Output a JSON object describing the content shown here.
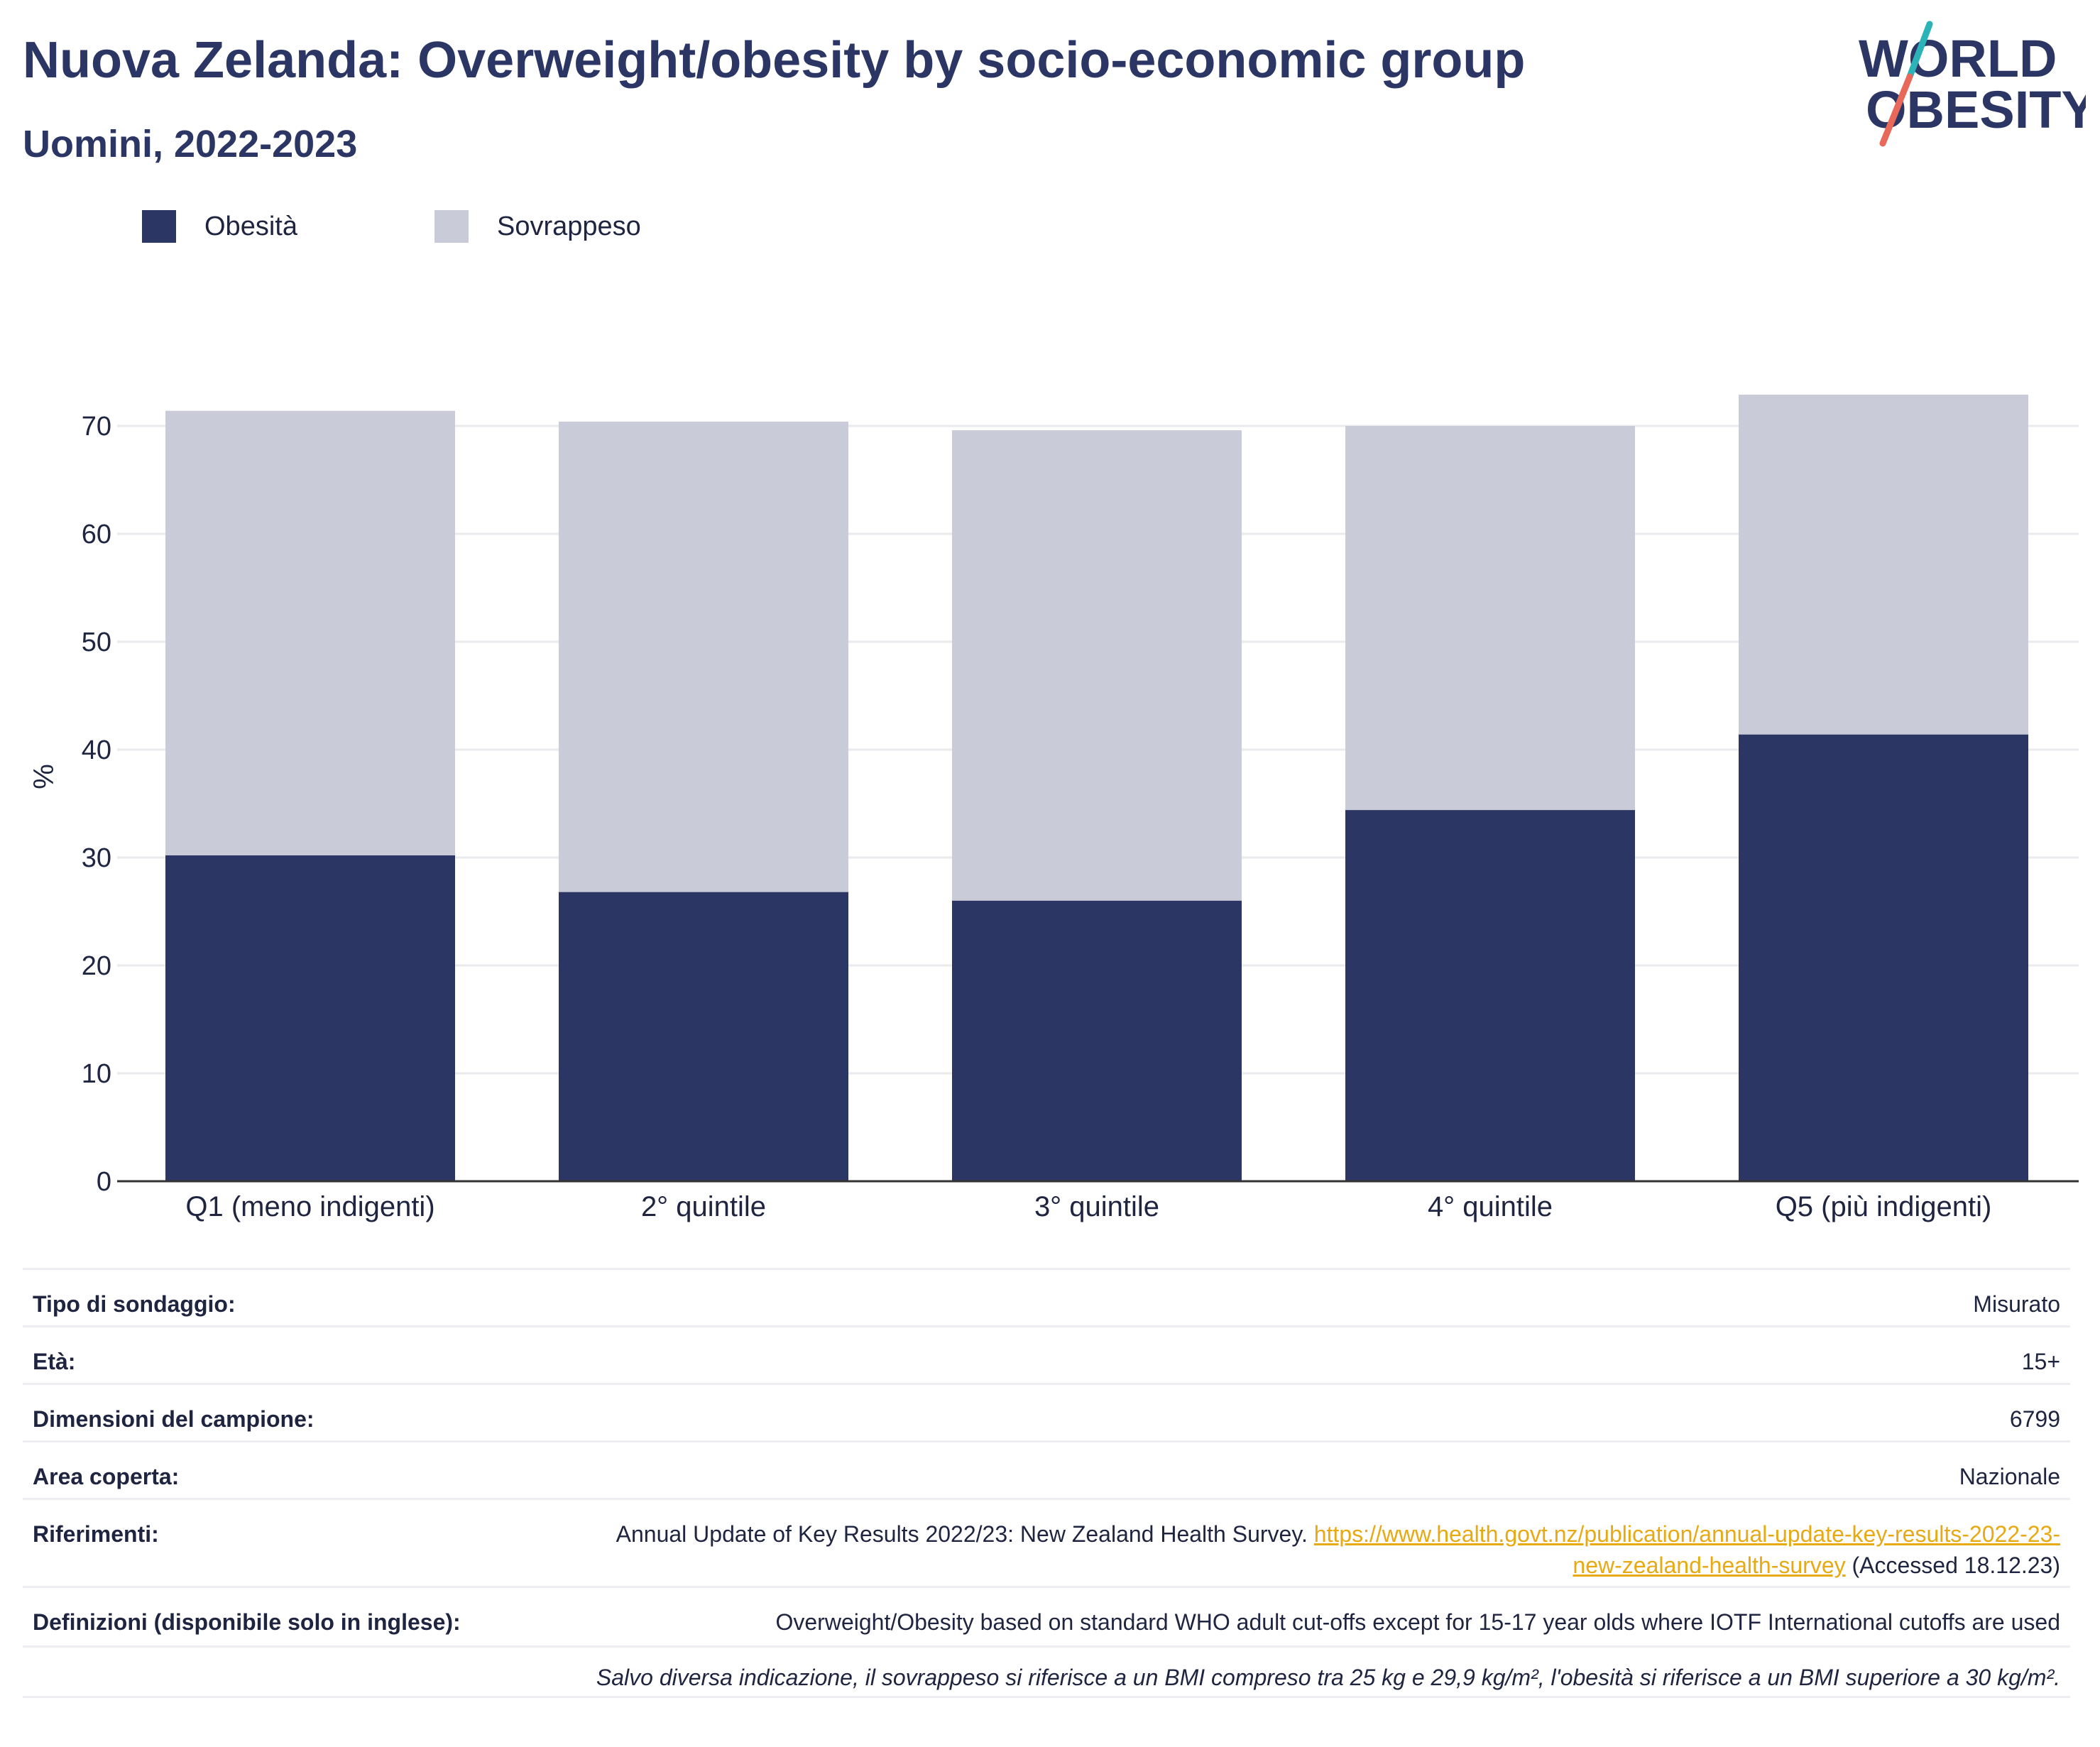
{
  "header": {
    "title": "Nuova Zelanda: Overweight/obesity by socio-economic group",
    "subtitle": "Uomini, 2022-2023"
  },
  "logo": {
    "line1": "WORLD",
    "line2": "OBESITY",
    "colors": {
      "text": "#2b3664",
      "slash_teal": "#2bb3b8",
      "slash_coral": "#e8695a"
    }
  },
  "colors": {
    "obesity": "#2b3664",
    "overweight": "#cacbd8",
    "grid": "#e9eaee",
    "axis": "#333333",
    "link": "#e8a912"
  },
  "chart_data": {
    "type": "bar",
    "stacked": true,
    "categories": [
      "Q1 (meno indigenti)",
      "2° quintile",
      "3° quintile",
      "4° quintile",
      "Q5 (più indigenti)"
    ],
    "series": [
      {
        "name": "Obesità",
        "values": [
          30.2,
          26.8,
          26.0,
          34.4,
          41.4
        ]
      },
      {
        "name": "Sovrappeso",
        "values": [
          41.2,
          43.6,
          43.6,
          35.6,
          31.5
        ]
      }
    ],
    "totals": [
      71.4,
      70.4,
      69.6,
      70.0,
      72.9
    ],
    "ylabel": "%",
    "xlabel": "",
    "ylim": [
      0,
      75
    ],
    "yticks": [
      0,
      10,
      20,
      30,
      40,
      50,
      60,
      70
    ],
    "grid": true,
    "legend": "top-left"
  },
  "info": {
    "survey_type_label": "Tipo di sondaggio:",
    "survey_type_value": "Misurato",
    "age_label": "Età:",
    "age_value": "15+",
    "sample_label": "Dimensioni del campione:",
    "sample_value": "6799",
    "area_label": "Area coperta:",
    "area_value": "Nazionale",
    "references_label": "Riferimenti:",
    "references_text": "Annual Update of Key Results 2022/23: New Zealand Health Survey.",
    "references_link": "https://www.health.govt.nz/publication/annual-update-key-results-2022-23-new-zealand-health-survey",
    "references_accessed": "(Accessed 18.12.23)",
    "definitions_label": "Definizioni (disponibile solo in inglese):",
    "definitions_value": "Overweight/Obesity based on standard WHO adult cut-offs except for 15-17 year olds where IOTF International cutoffs are used",
    "note": "Salvo diversa indicazione, il sovrappeso si riferisce a un BMI compreso tra 25 kg e 29,9 kg/m², l'obesità si riferisce a un BMI superiore a 30 kg/m²."
  }
}
